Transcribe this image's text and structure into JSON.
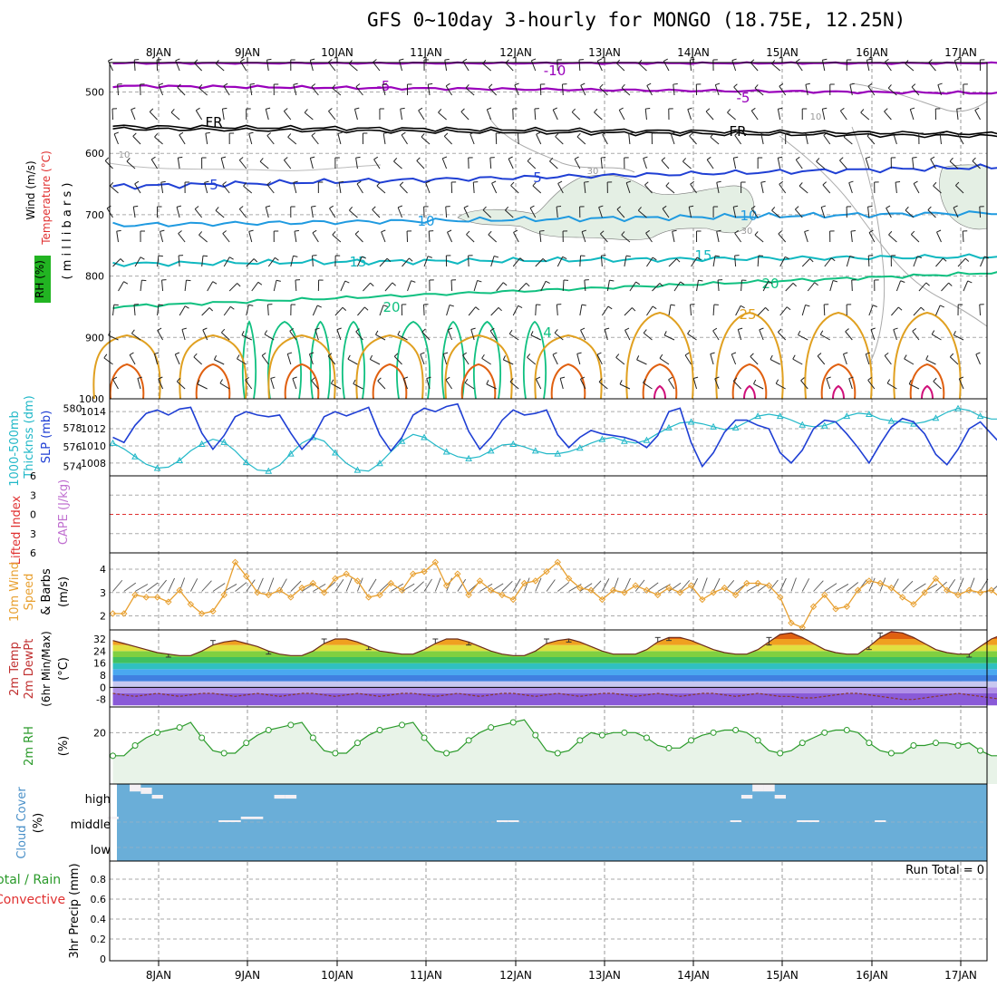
{
  "title": "GFS 0~10day 3-hourly for MONGO (18.75E, 12.25N)",
  "date_labels": [
    "8JAN",
    "9JAN",
    "10JAN",
    "11JAN",
    "12JAN",
    "13JAN",
    "14JAN",
    "15JAN",
    "16JAN",
    "17JAN"
  ],
  "panels": {
    "upper_air": {
      "ylabel_wind": "Wind (m/s)",
      "ylabel_temp": "Temperature (°C)",
      "ylabel_rh": "RH (%)",
      "ylabel_units": "( m i l l i b a r s )",
      "yticks": [
        "500",
        "600",
        "700",
        "800",
        "900",
        "1000"
      ],
      "temp_contour_labels": [
        "-10",
        "-5",
        "-5",
        "FR",
        "FR",
        "5",
        "5",
        "10",
        "10",
        "15",
        "15",
        "20",
        "20",
        "25",
        "4"
      ],
      "rh_contour_labels": [
        "10",
        "10",
        "30",
        "30"
      ],
      "colors": {
        "minus10": "#9900bb",
        "minus5": "#8a1fb5",
        "fr": "#000000",
        "plus5": "#1f3fd4",
        "plus10": "#1f9ae0",
        "plus15": "#10b8c0",
        "plus20": "#10c080",
        "plus25": "#e0a020",
        "plus30": "#e06010",
        "plus35": "#d0107a",
        "rh_fill": "#e4efe4"
      }
    },
    "thickness": {
      "ylabel_a": "1000-500mb",
      "ylabel_b": "Thicknss (dm)",
      "ylabel_c": "SLP (mb)",
      "left_ticks": [
        "580",
        "578",
        "576",
        "574"
      ],
      "right_ticks": [
        "1014",
        "1012",
        "1010",
        "1008"
      ]
    },
    "cape": {
      "ylabel_a": "Lifted Index",
      "ylabel_b": "CAPE (J/kg)",
      "ticks": [
        "6",
        "3",
        "0",
        "3",
        "6"
      ]
    },
    "wind10m": {
      "ylabel_a": "10m Wind",
      "ylabel_b": "Speed",
      "ylabel_c": "& Barbs",
      "ylabel_d": "(m/s)",
      "ticks": [
        "4",
        "3",
        "2"
      ]
    },
    "temp2m": {
      "ylabel_a": "2m Temp",
      "ylabel_b": "2m DewPt",
      "ylabel_c": "(6hr Min/Max)",
      "ylabel_d": "(°C)",
      "ticks": [
        "32",
        "24",
        "16",
        "8",
        "0",
        "-8"
      ]
    },
    "rh2m": {
      "ylabel_a": "2m RH",
      "ylabel_b": "(%)",
      "ticks": [
        "20"
      ]
    },
    "cloud": {
      "ylabel_a": "Cloud Cover",
      "ylabel_b": "(%)",
      "levels": [
        "high",
        "middle",
        "low"
      ]
    },
    "precip": {
      "ylabel_a": "Total / Rain",
      "ylabel_b": "Convective",
      "ylabel_c": "3hr Precip (mm)",
      "ticks": [
        "0.8",
        "0.6",
        "0.4",
        "0.2",
        "0"
      ],
      "run_total": "Run Total = 0"
    }
  },
  "chart_data": [
    {
      "type": "line",
      "panel": "1000-500mb thickness (dm) & SLP (mb)",
      "x_unit": "3-hourly steps from 7 JAN 12Z",
      "series": [
        {
          "name": "1000-500mb Thicknss (dm)",
          "axis": "left",
          "values": [
            576.4,
            575.8,
            575.0,
            574.2,
            573.8,
            573.9,
            574.6,
            575.6,
            576.3,
            576.8,
            576.5,
            575.6,
            574.4,
            573.6,
            573.5,
            574.1,
            575.3,
            576.4,
            577.0,
            576.6,
            575.4,
            574.3,
            573.6,
            573.5,
            574.3,
            575.5,
            576.6,
            577.3,
            577.0,
            576.2,
            575.5,
            575.0,
            574.8,
            575.0,
            575.6,
            576.2,
            576.3,
            576.0,
            575.6,
            575.3,
            575.3,
            575.5,
            575.9,
            576.4,
            576.8,
            577.0,
            576.6,
            576.4,
            576.7,
            577.4,
            578.0,
            578.5,
            578.6,
            578.4,
            578.1,
            577.8,
            578.0,
            578.6,
            579.2,
            579.4,
            579.2,
            578.8,
            578.3,
            578.1,
            578.2,
            578.6,
            579.2,
            579.5,
            579.4,
            578.9,
            578.7,
            578.6,
            578.4,
            578.6,
            579.0,
            579.6,
            580.0,
            579.8,
            579.2,
            578.9,
            578.9
          ]
        },
        {
          "name": "SLP (mb)",
          "axis": "right",
          "values": [
            1011.0,
            1010.4,
            1012.4,
            1013.8,
            1014.2,
            1013.6,
            1014.3,
            1014.5,
            1011.5,
            1009.6,
            1011.2,
            1013.4,
            1014.0,
            1013.6,
            1013.4,
            1013.6,
            1011.5,
            1009.6,
            1011.0,
            1013.4,
            1014.0,
            1013.5,
            1014.0,
            1014.5,
            1011.3,
            1009.4,
            1011.0,
            1013.6,
            1014.4,
            1014.0,
            1014.6,
            1014.9,
            1011.7,
            1009.6,
            1011.0,
            1013.0,
            1014.2,
            1013.6,
            1013.8,
            1014.2,
            1011.3,
            1009.8,
            1011.0,
            1011.8,
            1011.4,
            1011.2,
            1011.0,
            1010.6,
            1009.8,
            1011.2,
            1014.0,
            1014.4,
            1010.4,
            1007.6,
            1009.2,
            1011.6,
            1013.0,
            1013.0,
            1012.4,
            1012.0,
            1009.2,
            1008.0,
            1009.5,
            1012.0,
            1013.0,
            1012.8,
            1011.4,
            1009.8,
            1008.0,
            1010.2,
            1012.2,
            1013.2,
            1012.8,
            1011.4,
            1009.0,
            1007.8,
            1009.6,
            1012.0,
            1012.8,
            1011.4,
            1010.0
          ]
        }
      ],
      "left_ylim": [
        573,
        581
      ],
      "right_ylim": [
        1006.5,
        1015.5
      ],
      "grid": true
    },
    {
      "type": "line",
      "panel": "10m Wind Speed (m/s)",
      "x_unit": "3-hourly steps from 7 JAN 12Z",
      "series": [
        {
          "name": "10m Wind Speed (m/s)",
          "values": [
            2.1,
            2.1,
            2.9,
            2.8,
            2.8,
            2.6,
            3.1,
            2.5,
            2.1,
            2.2,
            2.9,
            4.3,
            3.7,
            3.0,
            2.9,
            3.1,
            2.8,
            3.2,
            3.4,
            3.0,
            3.6,
            3.8,
            3.5,
            2.8,
            2.9,
            3.4,
            3.1,
            3.8,
            3.9,
            4.3,
            3.3,
            3.8,
            2.9,
            3.5,
            3.1,
            2.9,
            2.7,
            3.4,
            3.5,
            3.9,
            4.3,
            3.6,
            3.2,
            3.1,
            2.7,
            3.1,
            3.0,
            3.3,
            3.1,
            2.9,
            3.2,
            3.0,
            3.3,
            2.7,
            3.0,
            3.2,
            2.9,
            3.4,
            3.4,
            3.3,
            2.8,
            1.7,
            1.5,
            2.4,
            2.9,
            2.3,
            2.4,
            3.1,
            3.5,
            3.4,
            3.2,
            2.8,
            2.5,
            3.0,
            3.6,
            3.1,
            2.9,
            3.1,
            3.0,
            3.1,
            2.7
          ]
        }
      ],
      "ylim": [
        1.4,
        4.7
      ],
      "grid": true
    },
    {
      "type": "area",
      "panel": "2m Temp (°C)",
      "x_unit": "3-hourly steps from 7 JAN 12Z",
      "series": [
        {
          "name": "2m Temp (°C)",
          "values": [
            31,
            29,
            27,
            25,
            23,
            22,
            21,
            21,
            24,
            28,
            30,
            31,
            29,
            27,
            24,
            22,
            21,
            21,
            24,
            29,
            32,
            32,
            30,
            27,
            24,
            23,
            22,
            22,
            25,
            29,
            32,
            32,
            30,
            27,
            24,
            22,
            21,
            21,
            24,
            29,
            31,
            32,
            30,
            27,
            24,
            22,
            22,
            22,
            25,
            30,
            33,
            33,
            31,
            28,
            25,
            23,
            22,
            22,
            25,
            30,
            35,
            36,
            33,
            29,
            25,
            23,
            22,
            22,
            27,
            33,
            37,
            36,
            33,
            29,
            25,
            23,
            22,
            22,
            27,
            32,
            35
          ]
        },
        {
          "name": "2m DewPt (°C)",
          "values": [
            -4,
            -5,
            -6,
            -5,
            -4,
            -5,
            -6,
            -5,
            -4,
            -4,
            -5,
            -6,
            -5,
            -4,
            -5,
            -6,
            -5,
            -4,
            -4,
            -5,
            -6,
            -5,
            -4,
            -5,
            -6,
            -5,
            -4,
            -4,
            -5,
            -6,
            -5,
            -4,
            -5,
            -6,
            -5,
            -4,
            -4,
            -5,
            -6,
            -5,
            -4,
            -5,
            -6,
            -5,
            -4,
            -4,
            -5,
            -6,
            -5,
            -4,
            -5,
            -6,
            -5,
            -4,
            -4,
            -5,
            -6,
            -5,
            -4,
            -5,
            -6,
            -6,
            -7,
            -7,
            -6,
            -5,
            -4,
            -4,
            -5,
            -6,
            -7,
            -8,
            -8,
            -7,
            -6,
            -5,
            -4,
            -5,
            -6,
            -7,
            -8
          ]
        }
      ],
      "ylim": [
        -13,
        38
      ],
      "grid": true
    },
    {
      "type": "area",
      "panel": "2m RH (%)",
      "x_unit": "3-hourly steps from 7 JAN 12Z",
      "series": [
        {
          "name": "2m RH (%)",
          "values": [
            11,
            11,
            15,
            18,
            20,
            21,
            22,
            24,
            18,
            13,
            12,
            12,
            16,
            19,
            21,
            22,
            23,
            24,
            18,
            13,
            12,
            12,
            16,
            19,
            21,
            22,
            23,
            24,
            18,
            13,
            12,
            13,
            17,
            20,
            22,
            23,
            24,
            25,
            19,
            13,
            12,
            13,
            17,
            20,
            19,
            20,
            20,
            20,
            18,
            15,
            14,
            14,
            17,
            19,
            20,
            21,
            21,
            20,
            17,
            13,
            12,
            13,
            16,
            18,
            20,
            21,
            21,
            20,
            16,
            13,
            12,
            12,
            15,
            15,
            16,
            16,
            15,
            16,
            13,
            11,
            11
          ]
        }
      ],
      "ylim": [
        0,
        30
      ],
      "grid": true
    },
    {
      "type": "bar",
      "panel": "Cloud Cover (%) — high / middle / low",
      "x_unit": "3-hourly steps from 7 JAN 12Z",
      "series": [
        {
          "name": "high",
          "values": [
            10,
            0,
            30,
            25,
            15,
            0,
            0,
            0,
            0,
            0,
            5,
            5,
            10,
            10,
            0,
            15,
            15,
            0,
            0,
            0,
            0,
            0,
            0,
            0,
            0,
            0,
            0,
            0,
            0,
            0,
            0,
            0,
            0,
            0,
            0,
            5,
            5,
            0,
            0,
            0,
            0,
            0,
            0,
            0,
            0,
            0,
            0,
            0,
            0,
            0,
            0,
            0,
            0,
            0,
            0,
            0,
            5,
            15,
            30,
            30,
            15,
            0,
            5,
            5,
            0,
            0,
            0,
            0,
            0,
            5,
            0,
            0,
            0,
            0,
            0,
            0,
            0,
            0,
            0,
            0,
            0
          ]
        },
        {
          "name": "middle",
          "values": [
            0,
            0,
            0,
            0,
            0,
            0,
            0,
            0,
            0,
            0,
            0,
            0,
            0,
            0,
            0,
            0,
            0,
            0,
            0,
            0,
            0,
            0,
            0,
            0,
            0,
            0,
            0,
            0,
            0,
            0,
            0,
            0,
            0,
            0,
            0,
            0,
            0,
            0,
            0,
            0,
            0,
            0,
            0,
            0,
            0,
            0,
            0,
            0,
            0,
            0,
            0,
            0,
            0,
            0,
            0,
            0,
            0,
            0,
            0,
            0,
            0,
            0,
            0,
            0,
            0,
            0,
            0,
            0,
            0,
            0,
            0,
            0,
            0,
            0,
            0,
            0,
            0,
            0,
            0,
            0,
            0
          ]
        },
        {
          "name": "low",
          "values": [
            0,
            0,
            0,
            0,
            0,
            0,
            0,
            0,
            0,
            0,
            0,
            0,
            0,
            0,
            0,
            0,
            0,
            0,
            0,
            0,
            0,
            0,
            0,
            0,
            0,
            0,
            0,
            0,
            0,
            0,
            0,
            0,
            0,
            0,
            0,
            0,
            0,
            0,
            0,
            0,
            0,
            0,
            0,
            0,
            0,
            0,
            0,
            0,
            0,
            0,
            0,
            0,
            0,
            0,
            0,
            0,
            0,
            0,
            0,
            0,
            0,
            0,
            0,
            0,
            0,
            0,
            0,
            0,
            0,
            0,
            0,
            0,
            0,
            0,
            0,
            0,
            0,
            0,
            0,
            0,
            0
          ]
        }
      ],
      "ylim": [
        0,
        100
      ]
    },
    {
      "type": "bar",
      "panel": "3hr Precip (mm)",
      "x_unit": "3-hourly steps from 7 JAN 12Z",
      "series": [
        {
          "name": "Total / Rain",
          "values": [
            0,
            0,
            0,
            0,
            0,
            0,
            0,
            0,
            0,
            0,
            0,
            0,
            0,
            0,
            0,
            0,
            0,
            0,
            0,
            0,
            0,
            0,
            0,
            0,
            0,
            0,
            0,
            0,
            0,
            0,
            0,
            0,
            0,
            0,
            0,
            0,
            0,
            0,
            0,
            0,
            0,
            0,
            0,
            0,
            0,
            0,
            0,
            0,
            0,
            0,
            0,
            0,
            0,
            0,
            0,
            0,
            0,
            0,
            0,
            0,
            0,
            0,
            0,
            0,
            0,
            0,
            0,
            0,
            0,
            0,
            0,
            0,
            0,
            0,
            0,
            0,
            0,
            0,
            0,
            0,
            0
          ]
        }
      ],
      "ylim": [
        0,
        1.0
      ],
      "grid": true
    },
    {
      "type": "line",
      "panel": "Lifted Index / CAPE (J/kg)",
      "series": [],
      "ylim": [
        -6,
        6
      ],
      "grid": true
    }
  ]
}
